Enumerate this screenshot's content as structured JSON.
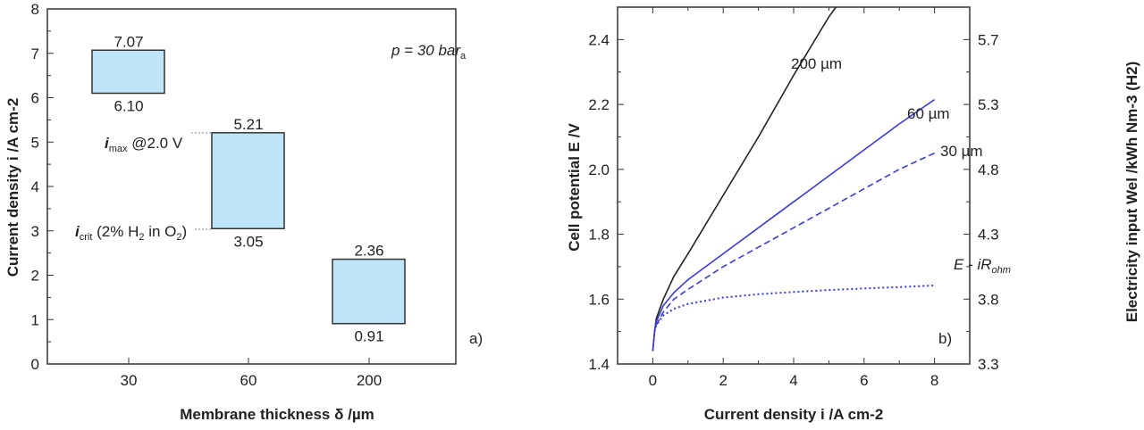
{
  "chart_data": [
    {
      "type": "floating-bar",
      "panel": "a)",
      "xlabel": "Membrane thickness δ /µm",
      "ylabel": "Current density i /A cm-2",
      "ylim": [
        0,
        8
      ],
      "yticks": [
        "0",
        "1",
        "2",
        "3",
        "4",
        "5",
        "6",
        "7",
        "8"
      ],
      "categories": [
        "30",
        "60",
        "200"
      ],
      "bars": [
        {
          "low": 6.1,
          "high": 7.07,
          "low_label": "6.10",
          "high_label": "7.07"
        },
        {
          "low": 3.05,
          "high": 5.21,
          "low_label": "3.05",
          "high_label": "5.21"
        },
        {
          "low": 0.91,
          "high": 2.36,
          "low_label": "0.91",
          "high_label": "2.36"
        }
      ],
      "annotations": {
        "pressure": "p = 30 bar",
        "pressure_sub": "a",
        "imax": "i",
        "imax_sub": "max",
        "imax_rest": " @2.0 V",
        "icrit": "i",
        "icrit_sub": "crit",
        "icrit_rest1": " (2% H",
        "icrit_sub2": "2",
        "icrit_rest2": " in O",
        "icrit_sub3": "2",
        "icrit_rest3": ")"
      },
      "bar_fill": "#bfe6f8"
    },
    {
      "type": "line",
      "panel": "b)",
      "xlabel": "Current density i /A cm-2",
      "ylabel": "Cell potential E /V",
      "y2label": "Electricity input Wel /kWh Nm-3 (H2)",
      "xlim": [
        -1,
        9
      ],
      "ylim": [
        1.4,
        2.5
      ],
      "xticks": [
        "0",
        "2",
        "4",
        "6",
        "8"
      ],
      "yticks": [
        "1.4",
        "1.6",
        "1.8",
        "2.0",
        "2.2",
        "2.4"
      ],
      "y2ticks": [
        "3.3",
        "3.8",
        "4.3",
        "4.8",
        "5.3",
        "5.7"
      ],
      "series": [
        {
          "name": "200 µm",
          "color": "#222222",
          "style": "solid",
          "points": [
            [
              0,
              1.44
            ],
            [
              0.05,
              1.5
            ],
            [
              0.1,
              1.54
            ],
            [
              0.3,
              1.6
            ],
            [
              0.6,
              1.67
            ],
            [
              1,
              1.74
            ],
            [
              2,
              1.92
            ],
            [
              3,
              2.1
            ],
            [
              4,
              2.29
            ],
            [
              5,
              2.47
            ],
            [
              5.2,
              2.5
            ]
          ]
        },
        {
          "name": "60 µm",
          "color": "#3a3ad8",
          "style": "solid",
          "points": [
            [
              0,
              1.44
            ],
            [
              0.05,
              1.5
            ],
            [
              0.1,
              1.53
            ],
            [
              0.3,
              1.58
            ],
            [
              0.6,
              1.62
            ],
            [
              1,
              1.66
            ],
            [
              2,
              1.74
            ],
            [
              3,
              1.82
            ],
            [
              4,
              1.9
            ],
            [
              5,
              1.98
            ],
            [
              6,
              2.06
            ],
            [
              7,
              2.14
            ],
            [
              8,
              2.215
            ]
          ]
        },
        {
          "name": "30 µm",
          "color": "#3a3ad8",
          "style": "dashed",
          "points": [
            [
              0.1,
              1.52
            ],
            [
              0.3,
              1.56
            ],
            [
              0.6,
              1.6
            ],
            [
              1,
              1.63
            ],
            [
              2,
              1.7
            ],
            [
              3,
              1.76
            ],
            [
              4,
              1.82
            ],
            [
              5,
              1.88
            ],
            [
              6,
              1.94
            ],
            [
              7,
              2.0
            ],
            [
              8,
              2.05
            ]
          ]
        },
        {
          "name": "E - iRohm",
          "color": "#3a3ad8",
          "style": "dotted",
          "points": [
            [
              0.05,
              1.5
            ],
            [
              0.1,
              1.52
            ],
            [
              0.3,
              1.55
            ],
            [
              0.6,
              1.57
            ],
            [
              1,
              1.585
            ],
            [
              2,
              1.605
            ],
            [
              3,
              1.615
            ],
            [
              4,
              1.622
            ],
            [
              5,
              1.628
            ],
            [
              6,
              1.633
            ],
            [
              7,
              1.637
            ],
            [
              8,
              1.642
            ]
          ]
        }
      ],
      "labels": {
        "s200": "200 µm",
        "s60": "60 µm",
        "s30": "30 µm",
        "ohm_a": "E - iR",
        "ohm_sub": "ohm"
      }
    }
  ]
}
